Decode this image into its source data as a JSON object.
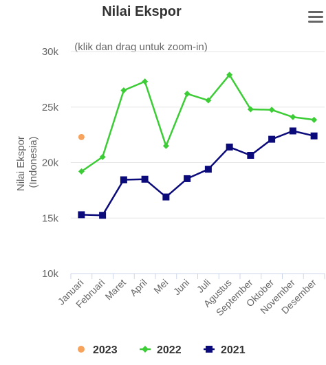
{
  "chart_data": {
    "type": "line",
    "title": "Nilai Ekspor",
    "subtitle": "(klik dan drag untuk zoom-in)",
    "ylabel": "Nilai Ekspor (Indonesia)",
    "ylabel_lines": [
      "Nilai Ekspor",
      "(Indonesia)"
    ],
    "xlabel": "",
    "ylim": [
      10000,
      30000
    ],
    "yticks": [
      10000,
      15000,
      20000,
      25000,
      30000
    ],
    "ytick_labels": [
      "10k",
      "15k",
      "20k",
      "25k",
      "30k"
    ],
    "categories": [
      "Januari",
      "Februari",
      "Maret",
      "April",
      "Mei",
      "Juni",
      "Juli",
      "Agustus",
      "September",
      "Oktober",
      "November",
      "Desember"
    ],
    "grid": "horizontal",
    "legend_position": "bottom",
    "series": [
      {
        "name": "2023",
        "color": "#f7a35c",
        "marker": "circle",
        "values": [
          22300,
          null,
          null,
          null,
          null,
          null,
          null,
          null,
          null,
          null,
          null,
          null
        ]
      },
      {
        "name": "2022",
        "color": "#3ccc36",
        "marker": "diamond",
        "values": [
          19200,
          20500,
          26500,
          27300,
          21500,
          26200,
          25600,
          27900,
          24800,
          24750,
          24100,
          23850
        ]
      },
      {
        "name": "2021",
        "color": "#0a0a7a",
        "marker": "square",
        "values": [
          15300,
          15250,
          18450,
          18500,
          16900,
          18550,
          19400,
          21400,
          20650,
          22100,
          22850,
          22400
        ]
      }
    ]
  },
  "menu_icon": "hamburger-menu-icon"
}
